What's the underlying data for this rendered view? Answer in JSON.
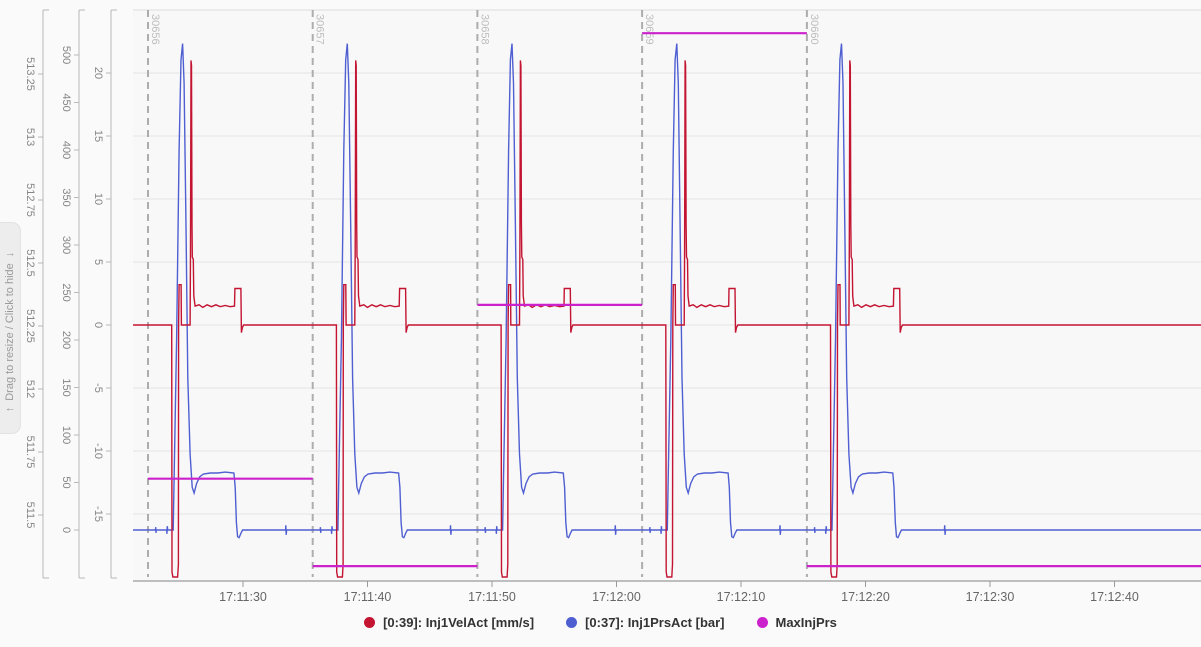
{
  "left_tab": {
    "arrow_up": "↑",
    "label": "Drag to resize / Click to hide",
    "arrow_down": "↓"
  },
  "x_axis_title": "",
  "chart_data": {
    "type": "line",
    "title": "",
    "x_axis": {
      "unit": "time-of-day",
      "t0_clock": "17:11:20",
      "tick_labels": [
        "17:11:30",
        "17:11:40",
        "17:11:50",
        "17:12:00",
        "17:12:10",
        "17:12:20",
        "17:12:30",
        "17:12:40"
      ],
      "tick_times_s": [
        10,
        20,
        30,
        40,
        50,
        60,
        70,
        80
      ],
      "visible_range_s": [
        1.2,
        86.9
      ]
    },
    "y_axes": [
      {
        "id": "position",
        "tick_labels": [
          513.25,
          513,
          512.75,
          512.5,
          512.25,
          512,
          511.75,
          511.5
        ]
      },
      {
        "id": "pressure",
        "unit": "bar",
        "tick_labels": [
          500,
          450,
          400,
          350,
          300,
          250,
          200,
          150,
          100,
          50,
          0
        ]
      },
      {
        "id": "velocity",
        "unit": "mm/s",
        "tick_labels": [
          20,
          15,
          10,
          5,
          0,
          -5,
          -10,
          -15
        ]
      }
    ],
    "grid": "horizontal gridlines at velocity-axis ticks",
    "legend_position": "bottom-center",
    "cycles": [
      {
        "label": "30656",
        "start_s": 2.37,
        "start_clock": "17:11:22",
        "max_inj_prs_bar": 54
      },
      {
        "label": "30657",
        "start_s": 15.6,
        "start_clock": "17:11:36",
        "max_inj_prs_bar": -38
      },
      {
        "label": "30658",
        "start_s": 28.83,
        "start_clock": "17:11:49",
        "max_inj_prs_bar": 237
      },
      {
        "label": "30659",
        "start_s": 42.06,
        "start_clock": "17:12:02",
        "max_inj_prs_bar": 523
      },
      {
        "label": "30660",
        "start_s": 55.29,
        "start_clock": "17:12:15",
        "max_inj_prs_bar": -38
      }
    ],
    "series": [
      {
        "name": "[0:39]: Inj1VelAct [mm/s]",
        "color": "#c31432",
        "axis": "velocity",
        "shape": "repeating cycle waveform, flat 0 between cycles",
        "cycle_waveform": [
          [
            0,
            0
          ],
          [
            1.9,
            0
          ],
          [
            1.93,
            -19.6
          ],
          [
            2.0,
            -20.0
          ],
          [
            2.38,
            -20.0
          ],
          [
            2.44,
            -19.0
          ],
          [
            2.46,
            0
          ],
          [
            2.5,
            3.2
          ],
          [
            2.66,
            3.2
          ],
          [
            2.68,
            0
          ],
          [
            3.38,
            0
          ],
          [
            3.41,
            6
          ],
          [
            3.45,
            21.0
          ],
          [
            3.49,
            20.6
          ],
          [
            3.53,
            8.0
          ],
          [
            3.56,
            5.4
          ],
          [
            3.64,
            5.2
          ],
          [
            3.68,
            2.3
          ],
          [
            3.78,
            1.5
          ],
          [
            4.1,
            1.6
          ],
          [
            4.4,
            1.4
          ],
          [
            4.75,
            1.6
          ],
          [
            5.1,
            1.45
          ],
          [
            5.45,
            1.6
          ],
          [
            5.8,
            1.45
          ],
          [
            6.2,
            1.55
          ],
          [
            6.6,
            1.45
          ],
          [
            6.95,
            1.5
          ],
          [
            6.98,
            2.9
          ],
          [
            7.46,
            2.9
          ],
          [
            7.5,
            -0.6
          ],
          [
            7.58,
            -0.2
          ],
          [
            7.68,
            0
          ],
          [
            13.22,
            0
          ]
        ]
      },
      {
        "name": "[0:37]: Inj1PrsAct [bar]",
        "color": "#4f5fd2",
        "axis": "pressure",
        "shape": "repeating cycle waveform, flat 0 between cycles",
        "cycle_waveform": [
          [
            0,
            0
          ],
          [
            0.6,
            0
          ],
          [
            0.62,
            3
          ],
          [
            0.64,
            -3
          ],
          [
            0.66,
            0
          ],
          [
            1.5,
            0
          ],
          [
            1.52,
            -4
          ],
          [
            1.55,
            4
          ],
          [
            1.58,
            0
          ],
          [
            2.02,
            0
          ],
          [
            2.1,
            60
          ],
          [
            2.3,
            200
          ],
          [
            2.5,
            400
          ],
          [
            2.65,
            495
          ],
          [
            2.78,
            512
          ],
          [
            2.9,
            470
          ],
          [
            3.05,
            320
          ],
          [
            3.2,
            160
          ],
          [
            3.38,
            80
          ],
          [
            3.55,
            45
          ],
          [
            3.7,
            39
          ],
          [
            3.9,
            49
          ],
          [
            4.15,
            56
          ],
          [
            4.45,
            59
          ],
          [
            5.0,
            60
          ],
          [
            5.6,
            60
          ],
          [
            6.2,
            61
          ],
          [
            6.9,
            60
          ],
          [
            7.0,
            45
          ],
          [
            7.1,
            8
          ],
          [
            7.2,
            -7
          ],
          [
            7.32,
            -8
          ],
          [
            7.48,
            -3
          ],
          [
            7.6,
            0
          ],
          [
            11.05,
            0
          ],
          [
            11.07,
            5
          ],
          [
            11.1,
            -5
          ],
          [
            11.13,
            0
          ],
          [
            13.22,
            0
          ]
        ]
      },
      {
        "name": "MaxInjPrs",
        "color": "#cc22cc",
        "axis": "pressure",
        "shape": "horizontal step segment per cycle",
        "per_cycle_level_bar": [
          54,
          -38,
          237,
          523,
          -38
        ]
      }
    ]
  }
}
